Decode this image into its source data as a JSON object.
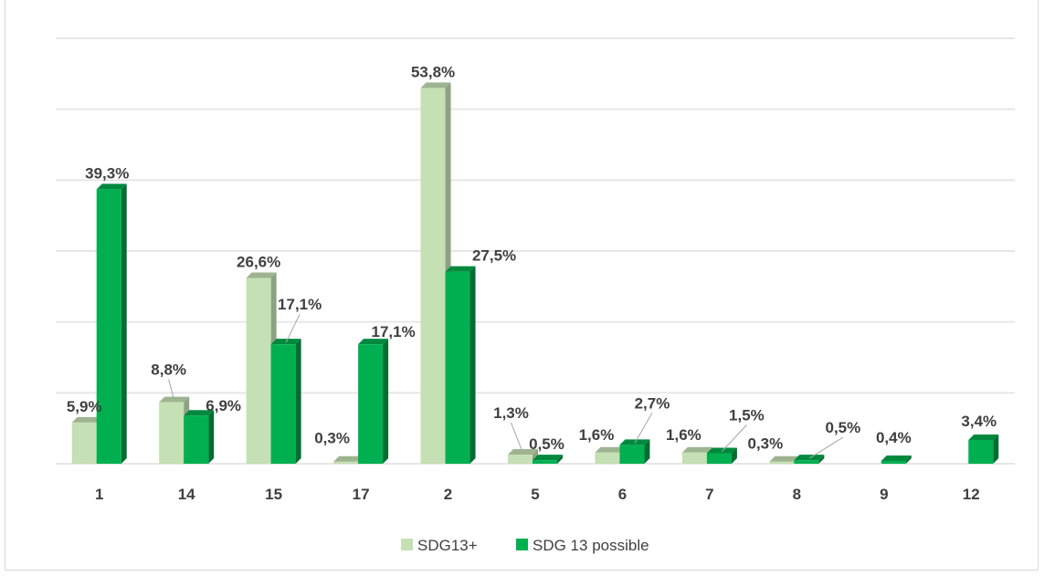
{
  "chart_data": {
    "type": "bar",
    "title": "",
    "categories": [
      "1",
      "14",
      "15",
      "17",
      "2",
      "5",
      "6",
      "7",
      "8",
      "9",
      "12"
    ],
    "series": [
      {
        "name": "SDG13+",
        "color": "#c5e0b4",
        "values": [
          5.9,
          8.8,
          26.6,
          0.3,
          53.8,
          1.3,
          1.6,
          1.6,
          0.3,
          null,
          null
        ],
        "labels": [
          "5,9%",
          "8,8%",
          "26,6%",
          "0,3%",
          "53,8%",
          "1,3%",
          "1,6%",
          "1,6%",
          "0,3%",
          "",
          ""
        ]
      },
      {
        "name": "SDG 13 possible",
        "color": "#00b050",
        "values": [
          39.3,
          6.9,
          17.1,
          17.1,
          27.5,
          0.5,
          2.7,
          1.5,
          0.5,
          0.4,
          3.4
        ],
        "labels": [
          "39,3%",
          "6,9%",
          "17,1%",
          "17,1%",
          "27,5%",
          "0,5%",
          "2,7%",
          "1,5%",
          "0,5%",
          "0,4%",
          "3,4%"
        ]
      }
    ],
    "ylim": [
      0,
      60
    ],
    "grid": true,
    "legend": "bottom",
    "style": "3d-clustered-column"
  }
}
